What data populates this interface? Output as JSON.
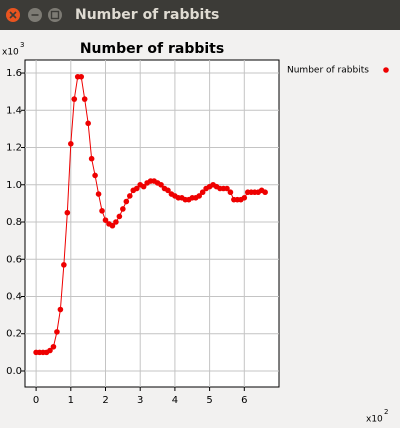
{
  "window": {
    "title": "Number of rabbits"
  },
  "chart_data": {
    "type": "line",
    "title": "Number of rabbits",
    "x": [
      0,
      0.1,
      0.2,
      0.3,
      0.4,
      0.5,
      0.6,
      0.7,
      0.8,
      0.9,
      1.0,
      1.1,
      1.2,
      1.3,
      1.4,
      1.5,
      1.6,
      1.7,
      1.8,
      1.9,
      2.0,
      2.1,
      2.2,
      2.3,
      2.4,
      2.5,
      2.6,
      2.7,
      2.8,
      2.9,
      3.0,
      3.1,
      3.2,
      3.3,
      3.4,
      3.5,
      3.6,
      3.7,
      3.8,
      3.9,
      4.0,
      4.1,
      4.2,
      4.3,
      4.4,
      4.5,
      4.6,
      4.7,
      4.8,
      4.9,
      5.0,
      5.1,
      5.2,
      5.3,
      5.4,
      5.5,
      5.6,
      5.7,
      5.8,
      5.9,
      6.0,
      6.1,
      6.2,
      6.3,
      6.4,
      6.5,
      6.6
    ],
    "series": [
      {
        "name": "Number of rabbits",
        "color": "#ee0000",
        "values": [
          0.1,
          0.1,
          0.1,
          0.1,
          0.11,
          0.13,
          0.21,
          0.33,
          0.57,
          0.85,
          1.22,
          1.46,
          1.58,
          1.58,
          1.46,
          1.33,
          1.14,
          1.05,
          0.95,
          0.86,
          0.81,
          0.79,
          0.78,
          0.8,
          0.83,
          0.87,
          0.91,
          0.94,
          0.97,
          0.98,
          1.0,
          0.99,
          1.01,
          1.02,
          1.02,
          1.01,
          1.0,
          0.98,
          0.97,
          0.95,
          0.94,
          0.93,
          0.93,
          0.92,
          0.92,
          0.93,
          0.93,
          0.94,
          0.96,
          0.98,
          0.99,
          1.0,
          0.99,
          0.98,
          0.98,
          0.98,
          0.96,
          0.92,
          0.92,
          0.92,
          0.93,
          0.96,
          0.96,
          0.96,
          0.96,
          0.97,
          0.96
        ]
      }
    ],
    "xlim": [
      -0.32,
      7.0
    ],
    "ylim": [
      -0.086,
      1.67
    ],
    "xticks": [
      0,
      1,
      2,
      3,
      4,
      5,
      6
    ],
    "yticks": [
      {
        "value": 0,
        "label": "0.0"
      },
      0.2,
      0.4,
      0.6,
      0.8,
      {
        "value": 1,
        "label": "1.0"
      },
      1.2,
      1.4,
      1.6
    ],
    "x_multiplier": "x10",
    "x_multiplier_exp": "2",
    "y_multiplier": "x10",
    "y_multiplier_exp": "3",
    "grid": true,
    "legend": "right"
  }
}
